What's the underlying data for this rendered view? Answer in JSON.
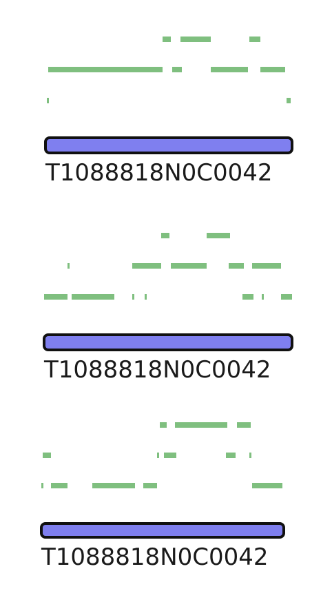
{
  "colors": {
    "background": "#ffffff",
    "bar_fill": "#7f7fef",
    "bar_stroke": "#111111",
    "feature": "#7fbf7f"
  },
  "tracks": [
    {
      "label": "T1088818N0C0042"
    },
    {
      "label": "T1088818N0C0042"
    },
    {
      "label": "T1088818N0C0042"
    }
  ]
}
